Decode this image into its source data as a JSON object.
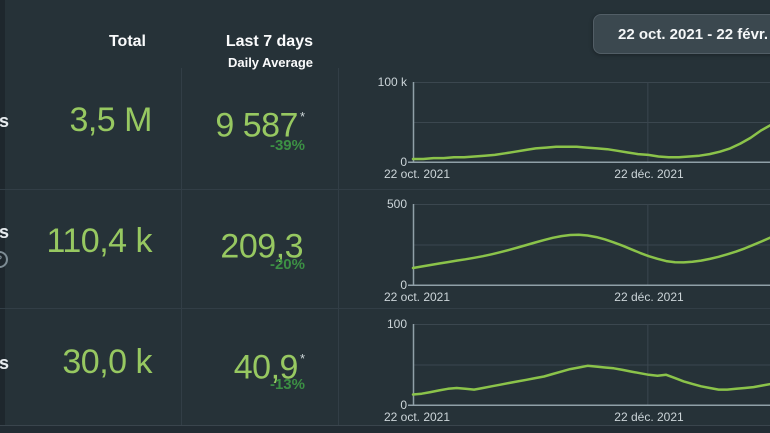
{
  "header": {
    "col_total": "Total",
    "col_last7days": "Last 7 days",
    "col_daily_average": "Daily Average",
    "date_range": "22 oct. 2021 - 22 févr."
  },
  "rows": [
    {
      "label_fragment": "s",
      "total": "3,5 M",
      "daily_avg": "9 587",
      "footnote_marker": "*",
      "pct_change": "-39%"
    },
    {
      "label_fragment": "s",
      "total": "110,4 k",
      "daily_avg": "209,3",
      "footnote_marker": "",
      "pct_change": "-20%",
      "help_icon": "question-mark"
    },
    {
      "label_fragment": "s",
      "total": "30,0 k",
      "daily_avg": "40,9",
      "footnote_marker": "*",
      "pct_change": "-13%"
    }
  ],
  "colors": {
    "background": "#263238",
    "chart_line": "#8bc34a",
    "value_green": "#97c861",
    "pct_green": "#3c9044",
    "axis": "#90a0a8",
    "grid": "#3b474f",
    "divider": "#323e46",
    "header_text": "#fafbfc",
    "axis_label": "#ccd5d9",
    "badge_bg": "#3b484f",
    "badge_border": "#525e66"
  },
  "chart_data": [
    {
      "type": "line",
      "ylim": [
        0,
        100000
      ],
      "y_top_label": "100 k",
      "y_bottom_label": "0",
      "x_ticks": [
        "22 oct. 2021",
        "22 déc. 2021"
      ],
      "dec_line_frac": 0.656,
      "grid": "top, middle and date gridlines on",
      "values": [
        5000,
        5000,
        6000,
        6000,
        7000,
        7000,
        8000,
        9000,
        10000,
        12000,
        14000,
        16000,
        18000,
        19000,
        20000,
        20000,
        20000,
        19000,
        18000,
        17000,
        15000,
        13000,
        11000,
        10000,
        8000,
        7000,
        7000,
        8000,
        9000,
        11000,
        14000,
        18000,
        24000,
        31000,
        40000,
        47000
      ]
    },
    {
      "type": "line",
      "ylim": [
        0,
        500
      ],
      "y_top_label": "500",
      "y_bottom_label": "0",
      "x_ticks": [
        "22 oct. 2021",
        "22 déc. 2021"
      ],
      "dec_line_frac": 0.656,
      "grid": "top, middle and date gridlines on",
      "values": [
        110,
        119,
        128,
        137,
        146,
        155,
        163,
        172,
        182,
        193,
        206,
        220,
        235,
        250,
        265,
        280,
        294,
        304,
        311,
        312,
        308,
        298,
        284,
        266,
        246,
        224,
        202,
        182,
        166,
        152,
        145,
        144,
        148,
        155,
        165,
        178,
        193,
        210,
        229,
        251,
        274,
        297
      ]
    },
    {
      "type": "line",
      "ylim": [
        0,
        100
      ],
      "y_top_label": "100",
      "y_bottom_label": "0",
      "x_ticks": [
        "22 oct. 2021",
        "22 déc. 2021"
      ],
      "dec_line_frac": 0.656,
      "grid": "top, middle and date gridlines on",
      "values": [
        14,
        15,
        17,
        19,
        21,
        22,
        21,
        20,
        22,
        24,
        26,
        28,
        30,
        32,
        34,
        36,
        39,
        42,
        45,
        47,
        49,
        48,
        47,
        46,
        44,
        42,
        40,
        38,
        37,
        38,
        34,
        30,
        27,
        24,
        22,
        20,
        20,
        21,
        22,
        23,
        25,
        27
      ]
    }
  ]
}
